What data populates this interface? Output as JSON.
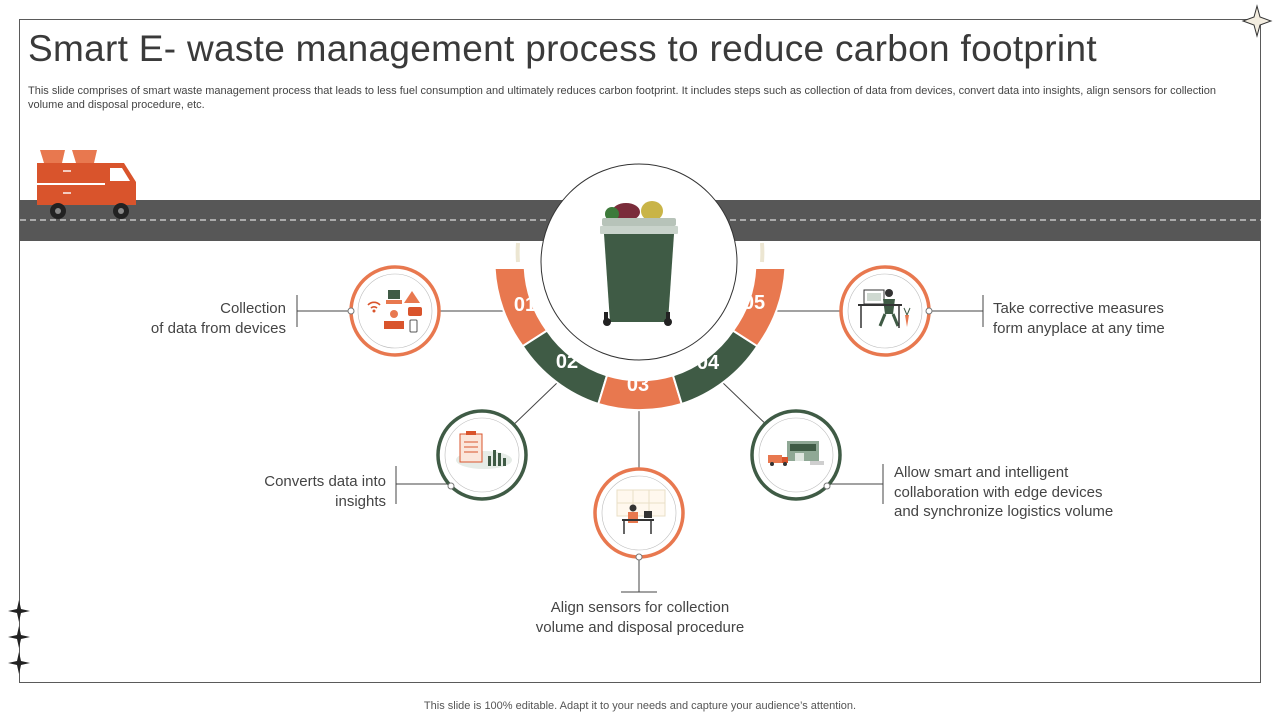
{
  "header": {
    "title": "Smart E- waste management process to reduce carbon footprint",
    "subtitle": "This slide comprises of smart waste management process that leads to less fuel consumption and ultimately reduces carbon footprint. It includes steps such as collection of data from devices, convert data into insights, align sensors for collection volume and disposal procedure, etc."
  },
  "steps": [
    {
      "number": "01",
      "line1": "Collection",
      "line2": "of data from devices",
      "icon": "devices-icon"
    },
    {
      "number": "02",
      "line1": "Converts data into",
      "line2": "insights",
      "icon": "insights-chart-icon"
    },
    {
      "number": "03",
      "line1": "Align sensors for collection",
      "line2": "volume  and disposal procedure",
      "icon": "sensor-workstation-icon"
    },
    {
      "number": "04",
      "line1": "Allow smart and  intelligent",
      "line2": "collaboration with edge devices",
      "line3": "and synchronize  logistics volume",
      "icon": "logistics-warehouse-icon"
    },
    {
      "number": "05",
      "line1": "Take corrective measures",
      "line2": "form anyplace at any time",
      "icon": "remote-worker-icon"
    }
  ],
  "footer": {
    "note": "This slide is 100% editable. Adapt it to your needs and capture your audience’s attention."
  },
  "colors": {
    "orange": "#E8784F",
    "dark_green": "#3F5B45",
    "road": "#575757",
    "truck": "#D9542C"
  }
}
